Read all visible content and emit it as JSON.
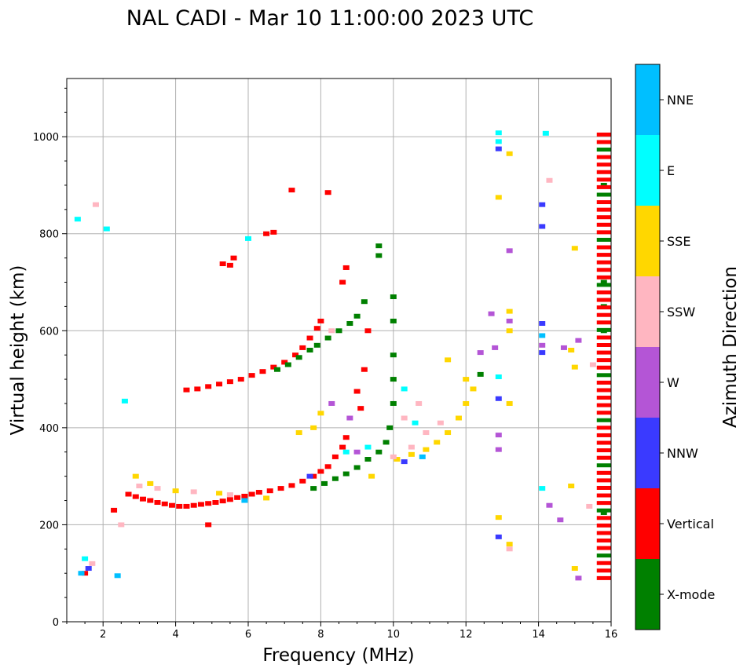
{
  "chart_data": {
    "type": "scatter",
    "title": "NAL CADI - Mar 10 11:00:00 2023 UTC",
    "xlabel": "Frequency (MHz)",
    "ylabel": "Virtual height (km)",
    "xlim": [
      1,
      16
    ],
    "ylim": [
      0,
      1120
    ],
    "xticks": [
      2,
      4,
      6,
      8,
      10,
      12,
      14,
      16
    ],
    "yticks": [
      0,
      200,
      400,
      600,
      800,
      1000
    ],
    "grid": true,
    "colorbar": {
      "label": "Azimuth Direction",
      "categories": [
        {
          "name": "X-mode",
          "color": "#008000"
        },
        {
          "name": "Vertical",
          "color": "#ff0000"
        },
        {
          "name": "NNW",
          "color": "#3a3aff"
        },
        {
          "name": "W",
          "color": "#b455d6"
        },
        {
          "name": "SSW",
          "color": "#ffb6c1"
        },
        {
          "name": "SSE",
          "color": "#ffd700"
        },
        {
          "name": "E",
          "color": "#00ffff"
        },
        {
          "name": "NNE",
          "color": "#00bfff"
        }
      ]
    },
    "series": [
      {
        "name": "Vertical",
        "color": "#ff0000",
        "points": [
          [
            2.7,
            263
          ],
          [
            2.9,
            258
          ],
          [
            3.1,
            253
          ],
          [
            3.3,
            250
          ],
          [
            3.5,
            246
          ],
          [
            3.7,
            243
          ],
          [
            3.9,
            240
          ],
          [
            4.1,
            238
          ],
          [
            4.3,
            238
          ],
          [
            4.5,
            240
          ],
          [
            4.7,
            242
          ],
          [
            4.9,
            244
          ],
          [
            5.1,
            246
          ],
          [
            5.3,
            249
          ],
          [
            5.5,
            252
          ],
          [
            5.7,
            256
          ],
          [
            5.9,
            259
          ],
          [
            6.1,
            263
          ],
          [
            6.3,
            267
          ],
          [
            6.6,
            270
          ],
          [
            6.9,
            275
          ],
          [
            7.2,
            281
          ],
          [
            7.5,
            290
          ],
          [
            7.8,
            300
          ],
          [
            8.0,
            310
          ],
          [
            8.2,
            320
          ],
          [
            8.4,
            340
          ],
          [
            8.6,
            360
          ],
          [
            8.7,
            380
          ],
          [
            4.3,
            478
          ],
          [
            4.6,
            480
          ],
          [
            4.9,
            485
          ],
          [
            5.2,
            490
          ],
          [
            5.5,
            495
          ],
          [
            5.8,
            500
          ],
          [
            6.1,
            508
          ],
          [
            6.4,
            516
          ],
          [
            6.7,
            525
          ],
          [
            7.0,
            535
          ],
          [
            7.3,
            550
          ],
          [
            7.5,
            565
          ],
          [
            7.7,
            585
          ],
          [
            7.9,
            605
          ],
          [
            8.0,
            620
          ],
          [
            8.6,
            700
          ],
          [
            8.7,
            730
          ],
          [
            9.0,
            475
          ],
          [
            9.1,
            440
          ],
          [
            9.2,
            520
          ],
          [
            9.3,
            600
          ],
          [
            8.2,
            885
          ],
          [
            7.2,
            890
          ],
          [
            1.5,
            100
          ],
          [
            2.3,
            230
          ],
          [
            4.9,
            200
          ],
          [
            6.5,
            800
          ],
          [
            6.7,
            803
          ],
          [
            5.6,
            750
          ],
          [
            5.3,
            738
          ],
          [
            5.5,
            735
          ]
        ]
      },
      {
        "name": "X-mode",
        "color": "#008000",
        "points": [
          [
            7.8,
            275
          ],
          [
            8.1,
            285
          ],
          [
            8.4,
            295
          ],
          [
            8.7,
            305
          ],
          [
            9.0,
            318
          ],
          [
            9.3,
            335
          ],
          [
            9.6,
            350
          ],
          [
            9.8,
            370
          ],
          [
            9.9,
            400
          ],
          [
            10.0,
            450
          ],
          [
            10.0,
            500
          ],
          [
            10.0,
            550
          ],
          [
            10.0,
            620
          ],
          [
            10.0,
            670
          ],
          [
            9.6,
            775
          ],
          [
            9.6,
            755
          ],
          [
            6.8,
            520
          ],
          [
            7.1,
            530
          ],
          [
            7.4,
            545
          ],
          [
            7.7,
            560
          ],
          [
            7.9,
            570
          ],
          [
            8.2,
            585
          ],
          [
            8.5,
            600
          ],
          [
            8.8,
            615
          ],
          [
            9.0,
            630
          ],
          [
            9.2,
            660
          ],
          [
            12.4,
            510
          ],
          [
            15.8,
            900
          ],
          [
            15.8,
            225
          ],
          [
            15.8,
            650
          ],
          [
            15.8,
            700
          ],
          [
            15.8,
            600
          ]
        ]
      },
      {
        "name": "SSE",
        "color": "#ffd700",
        "points": [
          [
            2.9,
            300
          ],
          [
            3.3,
            285
          ],
          [
            4.0,
            270
          ],
          [
            5.2,
            265
          ],
          [
            6.5,
            255
          ],
          [
            10.1,
            335
          ],
          [
            10.5,
            345
          ],
          [
            10.9,
            355
          ],
          [
            11.2,
            370
          ],
          [
            11.5,
            390
          ],
          [
            11.8,
            420
          ],
          [
            12.0,
            450
          ],
          [
            12.2,
            480
          ],
          [
            11.5,
            540
          ],
          [
            12.0,
            500
          ],
          [
            12.9,
            215
          ],
          [
            12.9,
            875
          ],
          [
            13.2,
            965
          ],
          [
            13.2,
            600
          ],
          [
            13.2,
            640
          ],
          [
            13.2,
            450
          ],
          [
            13.2,
            160
          ],
          [
            15.0,
            770
          ],
          [
            15.0,
            110
          ],
          [
            14.9,
            280
          ],
          [
            15.0,
            525
          ],
          [
            14.9,
            560
          ],
          [
            7.4,
            390
          ],
          [
            7.8,
            400
          ],
          [
            8.0,
            430
          ],
          [
            9.4,
            300
          ]
        ]
      },
      {
        "name": "SSW",
        "color": "#ffb6c1",
        "points": [
          [
            3.0,
            280
          ],
          [
            3.5,
            275
          ],
          [
            4.5,
            268
          ],
          [
            5.5,
            262
          ],
          [
            10.0,
            340
          ],
          [
            10.5,
            360
          ],
          [
            10.9,
            390
          ],
          [
            11.3,
            410
          ],
          [
            10.7,
            450
          ],
          [
            10.3,
            420
          ],
          [
            13.2,
            150
          ],
          [
            14.3,
            910
          ],
          [
            15.4,
            238
          ],
          [
            15.5,
            530
          ],
          [
            1.7,
            120
          ],
          [
            2.5,
            200
          ],
          [
            1.8,
            860
          ],
          [
            8.3,
            600
          ]
        ]
      },
      {
        "name": "W",
        "color": "#b455d6",
        "points": [
          [
            8.3,
            450
          ],
          [
            8.8,
            420
          ],
          [
            12.8,
            565
          ],
          [
            12.7,
            635
          ],
          [
            13.2,
            765
          ],
          [
            13.2,
            620
          ],
          [
            12.9,
            385
          ],
          [
            12.9,
            355
          ],
          [
            14.1,
            570
          ],
          [
            14.3,
            240
          ],
          [
            14.6,
            210
          ],
          [
            14.7,
            565
          ],
          [
            15.1,
            90
          ],
          [
            15.1,
            580
          ],
          [
            12.4,
            555
          ],
          [
            9.0,
            350
          ]
        ]
      },
      {
        "name": "NNW",
        "color": "#3a3aff",
        "points": [
          [
            12.9,
            175
          ],
          [
            12.9,
            975
          ],
          [
            14.1,
            860
          ],
          [
            14.1,
            815
          ],
          [
            14.1,
            615
          ],
          [
            14.1,
            555
          ],
          [
            12.9,
            460
          ],
          [
            1.6,
            110
          ],
          [
            7.7,
            300
          ],
          [
            10.3,
            330
          ]
        ]
      },
      {
        "name": "E",
        "color": "#00ffff",
        "points": [
          [
            1.5,
            130
          ],
          [
            2.6,
            455
          ],
          [
            10.3,
            480
          ],
          [
            10.6,
            410
          ],
          [
            12.9,
            1008
          ],
          [
            12.9,
            990
          ],
          [
            12.9,
            505
          ],
          [
            14.2,
            1007
          ],
          [
            14.1,
            275
          ],
          [
            1.3,
            830
          ],
          [
            6.0,
            790
          ],
          [
            2.1,
            810
          ],
          [
            8.7,
            350
          ],
          [
            9.3,
            360
          ]
        ]
      },
      {
        "name": "NNE",
        "color": "#00bfff",
        "points": [
          [
            1.4,
            100
          ],
          [
            2.4,
            95
          ],
          [
            5.9,
            250
          ],
          [
            10.8,
            340
          ],
          [
            14.1,
            590
          ]
        ]
      }
    ]
  }
}
